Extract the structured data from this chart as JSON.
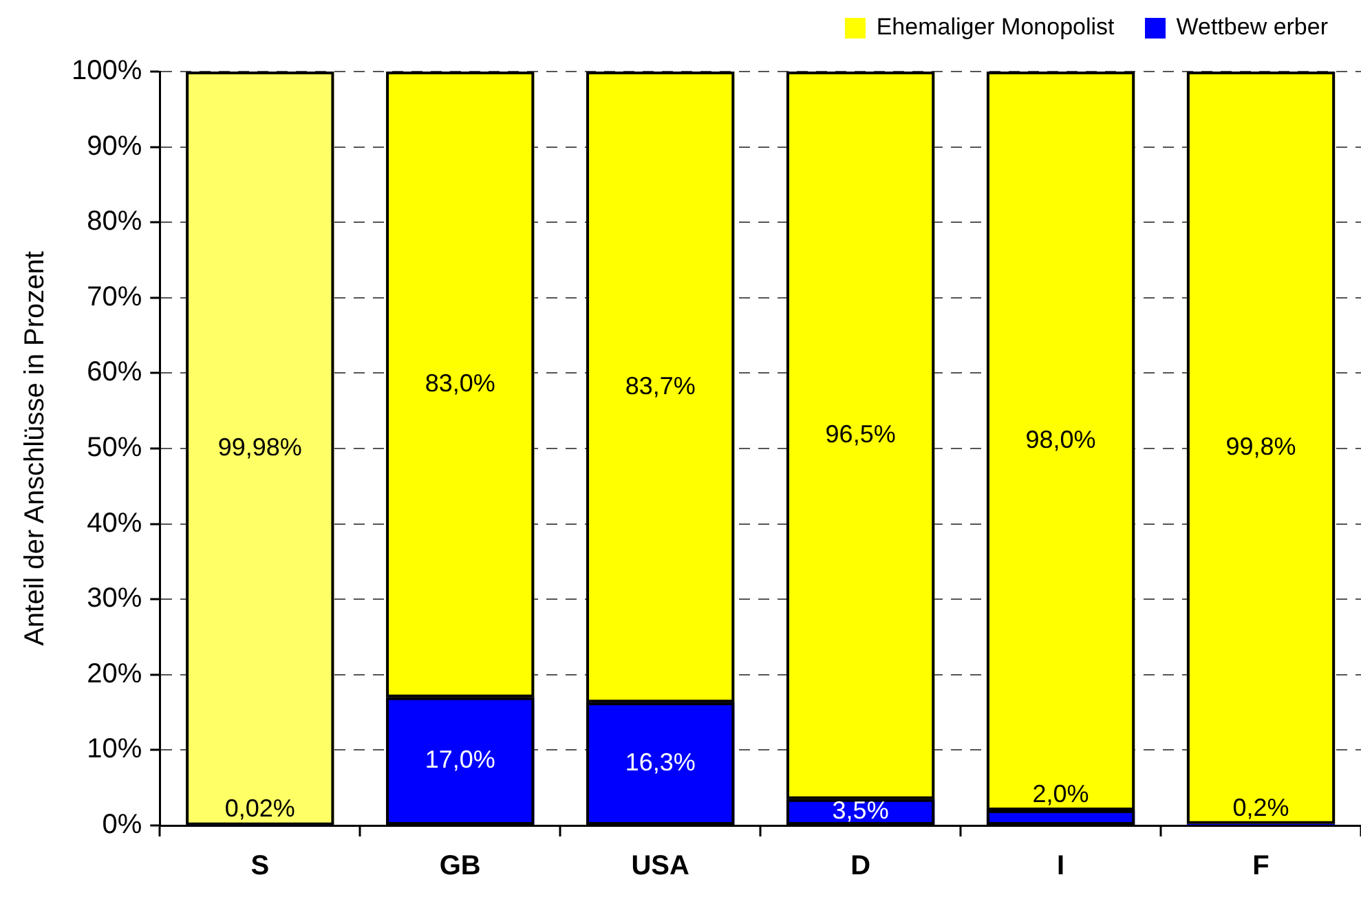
{
  "chart_data": {
    "type": "bar",
    "ylabel": "Anteil der Anschlüsse in Prozent",
    "categories": [
      "S",
      "GB",
      "USA",
      "D",
      "I",
      "F"
    ],
    "stacked": true,
    "series": [
      {
        "name": "Wettbew erber",
        "color": "#0000ff",
        "values": [
          0.02,
          17.0,
          16.3,
          3.5,
          2.0,
          0.2
        ],
        "value_labels": [
          "0,02%",
          "17,0%",
          "16,3%",
          "3,5%",
          "2,0%",
          "0,2%"
        ]
      },
      {
        "name": "Ehemaliger Monopolist",
        "color": "#ffff00",
        "colors": [
          "#ffff66",
          "#ffff00",
          "#ffff00",
          "#ffff00",
          "#ffff00",
          "#ffff00"
        ],
        "values": [
          99.98,
          83.0,
          83.7,
          96.5,
          98.0,
          99.8
        ],
        "value_labels": [
          "99,98%",
          "83,0%",
          "83,7%",
          "96,5%",
          "98,0%",
          "99,8%"
        ]
      }
    ],
    "ylim": [
      0,
      100
    ],
    "yticks": [
      {
        "value": 0,
        "label": "0%"
      },
      {
        "value": 10,
        "label": "10%"
      },
      {
        "value": 20,
        "label": "20%"
      },
      {
        "value": 30,
        "label": "30%"
      },
      {
        "value": 40,
        "label": "40%"
      },
      {
        "value": 50,
        "label": "50%"
      },
      {
        "value": 60,
        "label": "60%"
      },
      {
        "value": 70,
        "label": "70%"
      },
      {
        "value": 80,
        "label": "80%"
      },
      {
        "value": 90,
        "label": "90%"
      },
      {
        "value": 100,
        "label": "100%"
      }
    ],
    "grid": "y",
    "legend": "top right"
  }
}
